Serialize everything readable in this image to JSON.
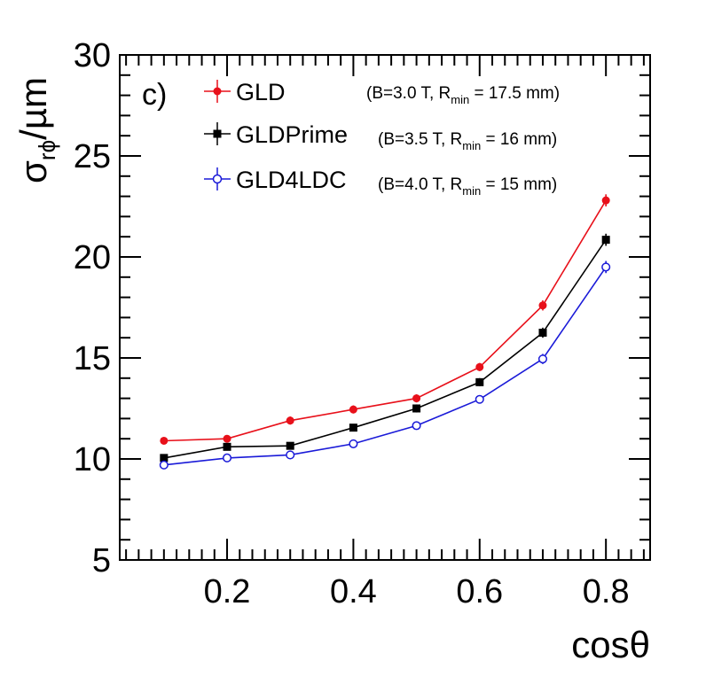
{
  "chart_data": {
    "type": "line",
    "title": "",
    "panel_label": "c)",
    "xlabel": "cosθ",
    "ylabel": {
      "base": "σ",
      "subscript": "rϕ",
      "rest": "/µm"
    },
    "xlim": [
      0.03,
      0.87
    ],
    "ylim": [
      5,
      30
    ],
    "x_ticks": [
      {
        "value": 0.2,
        "label": "0.2"
      },
      {
        "value": 0.4,
        "label": "0.4"
      },
      {
        "value": 0.6,
        "label": "0.6"
      },
      {
        "value": 0.8,
        "label": "0.8"
      }
    ],
    "y_ticks": [
      {
        "value": 5,
        "label": "5"
      },
      {
        "value": 10,
        "label": "10"
      },
      {
        "value": 15,
        "label": "15"
      },
      {
        "value": 20,
        "label": "20"
      },
      {
        "value": 25,
        "label": "25"
      },
      {
        "value": 30,
        "label": "30"
      }
    ],
    "x_minor_step": 0.02,
    "y_minor_step": 1,
    "legend_position": "top-left",
    "x": [
      0.1,
      0.2,
      0.3,
      0.4,
      0.5,
      0.6,
      0.7,
      0.8
    ],
    "series": [
      {
        "name": "GLD",
        "color": "#e8101a",
        "marker": "filled-circle",
        "note": {
          "prefix": "(B=3.0 T, R",
          "sub": "min",
          "suffix": " = 17.5 mm)"
        },
        "values": [
          10.9,
          11.0,
          11.9,
          12.45,
          13.0,
          14.55,
          17.6,
          22.8
        ],
        "errors": [
          0.15,
          0.15,
          0.2,
          0.2,
          0.2,
          0.2,
          0.25,
          0.3
        ]
      },
      {
        "name": "GLDPrime",
        "color": "#000000",
        "marker": "filled-square",
        "note": {
          "prefix": "(B=3.5 T, R",
          "sub": "min",
          "suffix": " = 16 mm)"
        },
        "values": [
          10.05,
          10.6,
          10.65,
          11.55,
          12.5,
          13.8,
          16.25,
          20.85
        ],
        "errors": [
          0.12,
          0.12,
          0.15,
          0.15,
          0.2,
          0.2,
          0.25,
          0.3
        ]
      },
      {
        "name": "GLD4LDC",
        "color": "#1a1ad8",
        "marker": "open-circle",
        "note": {
          "prefix": "(B=4.0 T, R",
          "sub": "min",
          "suffix": " = 15 mm)"
        },
        "values": [
          9.7,
          10.05,
          10.2,
          10.75,
          11.65,
          12.95,
          14.95,
          19.5
        ],
        "errors": [
          0.1,
          0.1,
          0.12,
          0.12,
          0.15,
          0.2,
          0.25,
          0.3
        ]
      }
    ]
  }
}
